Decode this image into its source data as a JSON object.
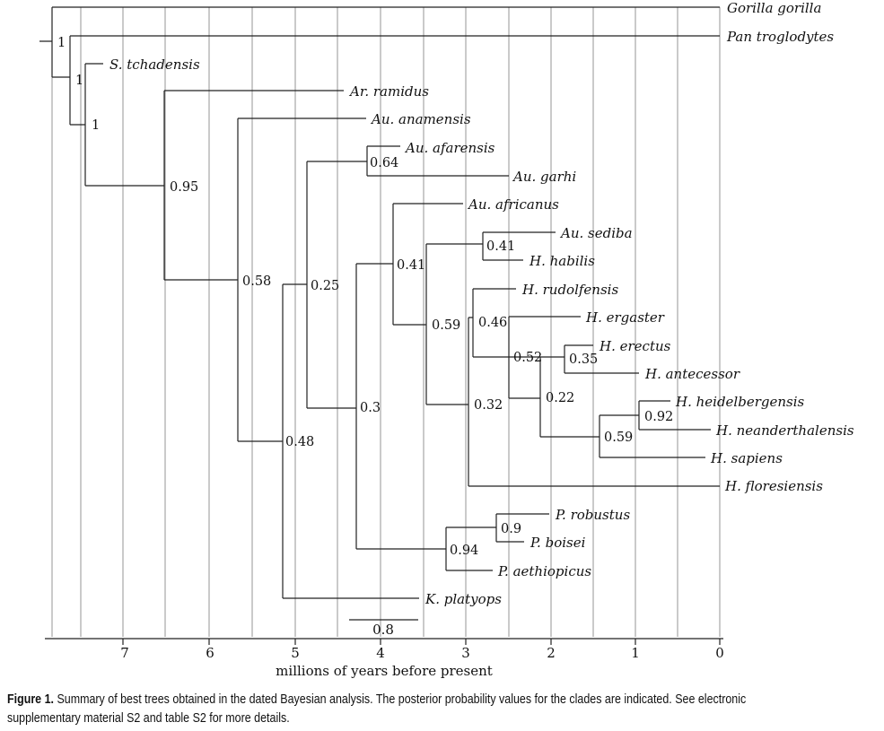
{
  "figure": {
    "caption_label": "Figure 1.",
    "caption_text": "Summary of best trees obtained in the dated Bayesian analysis. The posterior probability values for the clades are indicated. See electronic supplementary material S2 and table S2 for more details."
  },
  "axis": {
    "label": "millions of years before present",
    "ticks": [
      "7",
      "6",
      "5",
      "4",
      "3",
      "2",
      "1",
      "0"
    ],
    "scale_bar_label": "0.8"
  },
  "taxa": {
    "gorilla": "Gorilla gorilla",
    "pan": "Pan troglodytes",
    "sahelanthropus": "S. tchadensis",
    "ramidus": "Ar. ramidus",
    "anamensis": "Au. anamensis",
    "afarensis": "Au. afarensis",
    "garhi": "Au. garhi",
    "africanus": "Au. africanus",
    "sediba": "Au. sediba",
    "habilis": "H. habilis",
    "rudolfensis": "H. rudolfensis",
    "ergaster": "H. ergaster",
    "erectus": "H. erectus",
    "antecessor": "H. antecessor",
    "heidelbergensis": "H. heidelbergensis",
    "neanderthalensis": "H. neanderthalensis",
    "sapiens": "H. sapiens",
    "floresiensis": "H. floresiensis",
    "robustus": "P. robustus",
    "boisei": "P. boisei",
    "aethiopicus": "P. aethiopicus",
    "platyops": "K. platyops"
  },
  "posteriors": {
    "root": "1",
    "pan_clade": "1",
    "sahel_clade": "1",
    "ramidus_clade": "0.95",
    "anamensis_clade": "0.58",
    "platyops_clade": "0.48",
    "afarensis_garhi": "0.64",
    "afarensis_rest": "0.25",
    "paranthropus_rest": "0.3",
    "africanus_rest": "0.41",
    "sediba_habilis": "0.41",
    "homo_rest": "0.59",
    "floresiensis_rest": "0.32",
    "rudolfensis_rest": "0.46",
    "ergaster_rest": "0.52",
    "erectus_antecessor": "0.35",
    "later_homo": "0.22",
    "sapiens_clade": "0.59",
    "heidel_neander": "0.92",
    "paranthropus": "0.94",
    "robustus_boisei": "0.9"
  }
}
